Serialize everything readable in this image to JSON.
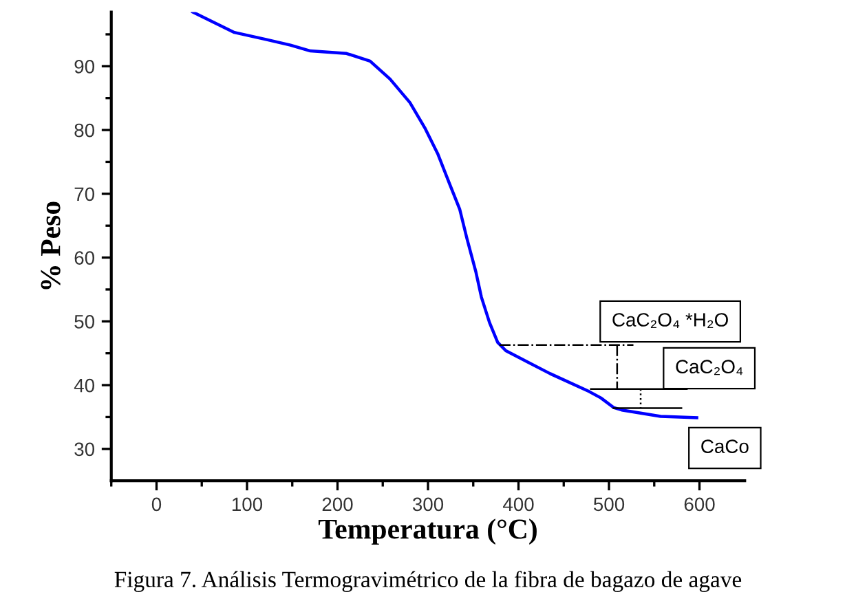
{
  "chart_data": {
    "type": "line",
    "xlabel": "Temperatura (°C)",
    "ylabel": "% Peso",
    "xlim": [
      -50,
      650
    ],
    "ylim": [
      25,
      98.5
    ],
    "xticks": [
      {
        "value": -50,
        "label": null
      },
      0,
      {
        "value": 50,
        "label": null
      },
      100,
      {
        "value": 150,
        "label": null
      },
      200,
      {
        "value": 250,
        "label": null
      },
      300,
      {
        "value": 350,
        "label": null
      },
      400,
      {
        "value": 450,
        "label": null
      },
      500,
      {
        "value": 550,
        "label": null
      },
      600
    ],
    "yticks": [
      30,
      {
        "value": 35,
        "label": null
      },
      40,
      {
        "value": 45,
        "label": null
      },
      50,
      {
        "value": 55,
        "label": null
      },
      60,
      {
        "value": 65,
        "label": null
      },
      70,
      {
        "value": 75,
        "label": null
      },
      80,
      {
        "value": 85,
        "label": null
      },
      90,
      {
        "value": 95,
        "label": null
      }
    ],
    "grid": false,
    "legend": false,
    "series": [
      {
        "color": "#0000ff",
        "line_style": "solid",
        "x": [
          40,
          86,
          121,
          148,
          170,
          210,
          236,
          258,
          280,
          297,
          311,
          324,
          335,
          343,
          353,
          359,
          368,
          377,
          386,
          435,
          478,
          491,
          505,
          514,
          557,
          597
        ],
        "values": [
          98.5,
          95.3,
          94.2,
          93.3,
          92.4,
          92.0,
          90.8,
          88.0,
          84.3,
          80.2,
          76.2,
          71.5,
          67.6,
          63.0,
          57.7,
          53.8,
          49.8,
          46.7,
          45.4,
          41.8,
          39.0,
          38.0,
          36.5,
          36.1,
          35.1,
          34.9
        ]
      },
      {
        "color": "#000000",
        "line_style": "dashed",
        "x": [
          379,
          527
        ],
        "values": [
          46.3,
          46.3
        ]
      },
      {
        "color": "#000000",
        "line_style": "dashed",
        "x": [
          509,
          509
        ],
        "values": [
          46.3,
          39.4
        ]
      },
      {
        "color": "#000000",
        "line_style": "solid",
        "x": [
          480,
          586
        ],
        "values": [
          39.4,
          39.4
        ]
      },
      {
        "color": "#000000",
        "line_style": "solid",
        "x": [
          505,
          580
        ],
        "values": [
          36.4,
          36.4
        ]
      },
      {
        "color": "#000000",
        "line_style": "dotted",
        "x": [
          535,
          535
        ],
        "values": [
          39.4,
          36.4
        ]
      }
    ],
    "annotations": [
      "CaC₂O₄ *H₂O",
      "CaC₂O₄",
      "CaCo",
      "Figura 7. Análisis Termogravimétrico de la fibra de bagazo de agave"
    ]
  }
}
